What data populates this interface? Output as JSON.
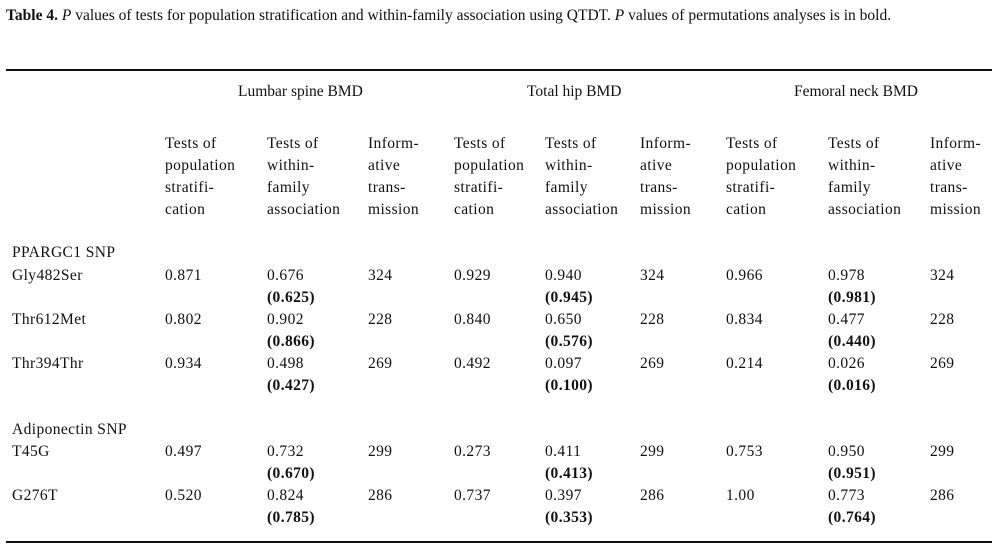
{
  "caption": {
    "label": "Table 4.",
    "p1": "P",
    "rest1": " values of tests for population stratification and within-family association using QTDT.  ",
    "p2": "P",
    "rest2": " values of permutations analyses is in bold."
  },
  "groups": [
    "Lumbar spine BMD",
    "Total hip BMD",
    "Femoral neck BMD"
  ],
  "subheaders": [
    [
      "Tests of",
      "population",
      "stratifi-",
      "cation"
    ],
    [
      "Tests of",
      "within-",
      "family",
      "association"
    ],
    [
      "Inform-",
      "ative",
      "trans-",
      "mission"
    ],
    [
      "Tests of",
      "population",
      "stratifi-",
      "cation"
    ],
    [
      "Tests of",
      "within-",
      "family",
      "association"
    ],
    [
      "Inform-",
      "ative",
      "trans-",
      "mission"
    ],
    [
      "Tests of",
      "population",
      "stratifi-",
      "cation"
    ],
    [
      "Tests of",
      "within-",
      "family",
      "association"
    ],
    [
      "Inform-",
      "ative",
      "trans-",
      "mission"
    ]
  ],
  "sections": [
    {
      "title": "PPARGC1 SNP",
      "rows": [
        {
          "name": "Gly482Ser",
          "vals": [
            "0.871",
            "0.676",
            "324",
            "0.929",
            "0.940",
            "324",
            "0.966",
            "0.978",
            "324"
          ],
          "perm": [
            "(0.625)",
            "(0.945)",
            "(0.981)"
          ]
        },
        {
          "name": "Thr612Met",
          "vals": [
            "0.802",
            "0.902",
            "228",
            "0.840",
            "0.650",
            "228",
            "0.834",
            "0.477",
            "228"
          ],
          "perm": [
            "(0.866)",
            "(0.576)",
            "(0.440)"
          ]
        },
        {
          "name": "Thr394Thr",
          "vals": [
            "0.934",
            "0.498",
            "269",
            "0.492",
            "0.097",
            "269",
            "0.214",
            "0.026",
            "269"
          ],
          "perm": [
            "(0.427)",
            "(0.100)",
            "(0.016)"
          ]
        }
      ]
    },
    {
      "title": "Adiponectin SNP",
      "rows": [
        {
          "name": "T45G",
          "vals": [
            "0.497",
            "0.732",
            "299",
            "0.273",
            "0.411",
            "299",
            "0.753",
            "0.950",
            "299"
          ],
          "perm": [
            "(0.670)",
            "(0.413)",
            "(0.951)"
          ]
        },
        {
          "name": "G276T",
          "vals": [
            "0.520",
            "0.824",
            "286",
            "0.737",
            "0.397",
            "286",
            "1.00",
            "0.773",
            "286"
          ],
          "perm": [
            "(0.785)",
            "(0.353)",
            "(0.764)"
          ]
        }
      ]
    }
  ]
}
